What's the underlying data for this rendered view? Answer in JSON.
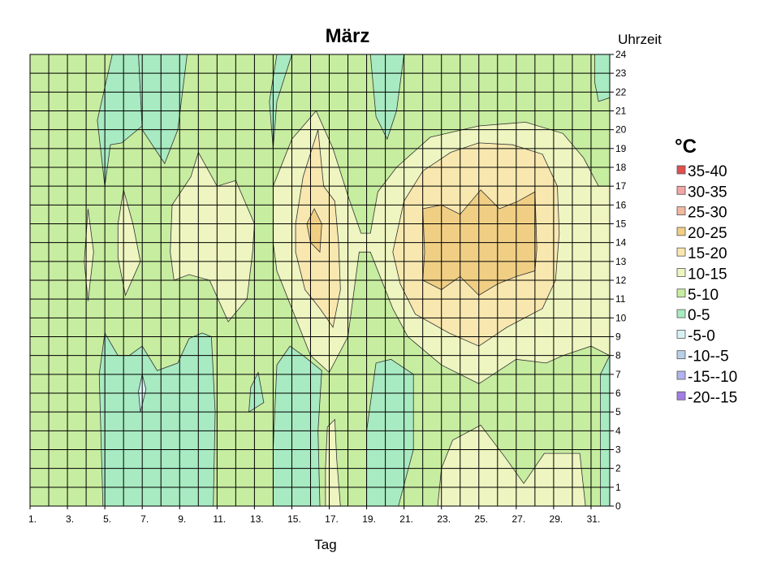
{
  "chart_data": {
    "type": "heatmap",
    "subtype": "filled-contour",
    "title": "März",
    "xlabel": "Tag",
    "ylabel": "Uhrzeit",
    "x_tick_labels": [
      "1.",
      "3.",
      "5.",
      "7.",
      "9.",
      "11.",
      "13.",
      "15.",
      "17.",
      "19.",
      "21.",
      "23.",
      "25.",
      "27.",
      "29.",
      "31."
    ],
    "xlim": [
      1,
      32
    ],
    "ylim": [
      0,
      24
    ],
    "y_ticks": [
      0,
      1,
      2,
      3,
      4,
      5,
      6,
      7,
      8,
      9,
      10,
      11,
      12,
      13,
      14,
      15,
      16,
      17,
      18,
      19,
      20,
      21,
      22,
      23,
      24
    ],
    "grid": true,
    "legend": {
      "title": "°C",
      "position": "right",
      "entries": [
        {
          "label": "35-40",
          "color": "#e05050"
        },
        {
          "label": "30-35",
          "color": "#f2a6a6"
        },
        {
          "label": "25-30",
          "color": "#f1b9a0"
        },
        {
          "label": "20-25",
          "color": "#f0cf85"
        },
        {
          "label": "15-20",
          "color": "#f8e8b0"
        },
        {
          "label": "10-15",
          "color": "#eef5c0"
        },
        {
          "label": "5-10",
          "color": "#c7eda0"
        },
        {
          "label": "0-5",
          "color": "#a8eac2"
        },
        {
          "label": "-5-0",
          "color": "#d8f1f4"
        },
        {
          "label": "-10--5",
          "color": "#b9cfe8"
        },
        {
          "label": "-15--10",
          "color": "#b2b2ee"
        },
        {
          "label": "-20--15",
          "color": "#a27ee4"
        }
      ]
    },
    "regions": [
      {
        "band": "0-5",
        "color": "#a8eac2",
        "points": [
          [
            5.4,
            24
          ],
          [
            6.8,
            24
          ],
          [
            7.0,
            20.2
          ],
          [
            5.9,
            19.3
          ],
          [
            5.3,
            19.2
          ],
          [
            5.0,
            17.0
          ],
          [
            4.6,
            20.5
          ]
        ]
      },
      {
        "band": "0-5",
        "color": "#a8eac2",
        "points": [
          [
            6.8,
            24
          ],
          [
            9.4,
            24
          ],
          [
            8.9,
            20.0
          ],
          [
            8.2,
            18.2
          ],
          [
            7.0,
            20.0
          ]
        ]
      },
      {
        "band": "0-5",
        "color": "#a8eac2",
        "points": [
          [
            14.2,
            24
          ],
          [
            15.0,
            24
          ],
          [
            14.2,
            21.5
          ],
          [
            14.0,
            19.0
          ],
          [
            13.8,
            21.5
          ]
        ]
      },
      {
        "band": "0-5",
        "color": "#a8eac2",
        "points": [
          [
            19.2,
            24
          ],
          [
            21.0,
            24
          ],
          [
            20.6,
            21.0
          ],
          [
            20.1,
            19.5
          ],
          [
            19.5,
            20.7
          ]
        ]
      },
      {
        "band": "0-5",
        "color": "#a8eac2",
        "points": [
          [
            31.2,
            24
          ],
          [
            32.0,
            24
          ],
          [
            32.0,
            21.7
          ],
          [
            31.4,
            21.5
          ],
          [
            31.2,
            22.5
          ]
        ]
      },
      {
        "band": "0-5",
        "color": "#a8eac2",
        "points": [
          [
            4.9,
            0
          ],
          [
            10.8,
            0
          ],
          [
            10.9,
            5
          ],
          [
            10.7,
            9.0
          ],
          [
            10.2,
            9.2
          ],
          [
            9.5,
            8.9
          ],
          [
            8.9,
            7.6
          ],
          [
            7.8,
            7.2
          ],
          [
            7.0,
            8.5
          ],
          [
            6.3,
            8.0
          ],
          [
            5.7,
            8.0
          ],
          [
            5.0,
            9.2
          ],
          [
            4.7,
            7.0
          ]
        ]
      },
      {
        "band": "0-5",
        "color": "#a8eac2",
        "points": [
          [
            12.7,
            5.0
          ],
          [
            13.5,
            5.5
          ],
          [
            13.2,
            7.1
          ],
          [
            12.8,
            6.3
          ]
        ]
      },
      {
        "band": "0-5",
        "color": "#a8eac2",
        "points": [
          [
            14.0,
            0
          ],
          [
            16.5,
            0
          ],
          [
            16.4,
            4
          ],
          [
            16.6,
            7.2
          ],
          [
            15.6,
            8.0
          ],
          [
            14.9,
            8.5
          ],
          [
            14.2,
            7.5
          ],
          [
            14.0,
            3
          ]
        ]
      },
      {
        "band": "0-5",
        "color": "#a8eac2",
        "points": [
          [
            19.0,
            0
          ],
          [
            20.7,
            0
          ],
          [
            21.5,
            3
          ],
          [
            21.5,
            7.0
          ],
          [
            20.3,
            7.8
          ],
          [
            19.5,
            7.6
          ],
          [
            19.0,
            4
          ]
        ]
      },
      {
        "band": "0-5",
        "color": "#a8eac2",
        "points": [
          [
            31.5,
            0
          ],
          [
            32.0,
            0
          ],
          [
            32.0,
            8.0
          ],
          [
            31.5,
            7.0
          ]
        ]
      },
      {
        "band": "-5-0",
        "color": "#d8f1f4",
        "points": [
          [
            6.9,
            5.0
          ],
          [
            7.2,
            6.2
          ],
          [
            7.0,
            7.0
          ],
          [
            6.8,
            6.1
          ]
        ]
      },
      {
        "band": "10-15",
        "color": "#eef5c0",
        "points": [
          [
            3.9,
            13
          ],
          [
            4.1,
            15.8
          ],
          [
            4.4,
            13.5
          ],
          [
            4.1,
            10.9
          ]
        ]
      },
      {
        "band": "10-15",
        "color": "#eef5c0",
        "points": [
          [
            5.7,
            15.0
          ],
          [
            6.0,
            16.8
          ],
          [
            6.5,
            15.0
          ],
          [
            6.9,
            13.0
          ],
          [
            6.1,
            11.2
          ],
          [
            5.7,
            13.2
          ]
        ]
      },
      {
        "band": "10-15",
        "color": "#eef5c0",
        "points": [
          [
            8.5,
            13.5
          ],
          [
            8.6,
            16.0
          ],
          [
            9.6,
            17.5
          ],
          [
            10.0,
            18.8
          ],
          [
            11.0,
            17.0
          ],
          [
            12.0,
            17.3
          ],
          [
            13.0,
            15.0
          ],
          [
            12.9,
            13.5
          ],
          [
            12.6,
            11.0
          ],
          [
            11.6,
            9.8
          ],
          [
            10.6,
            12.0
          ],
          [
            9.5,
            12.3
          ],
          [
            8.7,
            12.0
          ]
        ]
      },
      {
        "band": "10-15",
        "color": "#eef5c0",
        "points": [
          [
            14.0,
            14.0
          ],
          [
            14.0,
            17.0
          ],
          [
            15.0,
            19.5
          ],
          [
            16.3,
            21.0
          ],
          [
            17.2,
            19.0
          ],
          [
            18.0,
            16.5
          ],
          [
            18.7,
            14.5
          ],
          [
            19.2,
            14.5
          ],
          [
            19.6,
            16.7
          ],
          [
            20.6,
            18.0
          ],
          [
            22.4,
            19.6
          ],
          [
            25.0,
            20.2
          ],
          [
            27.5,
            20.4
          ],
          [
            29.5,
            19.8
          ],
          [
            30.6,
            18.5
          ],
          [
            31.4,
            17.0
          ],
          [
            32.0,
            17.0
          ],
          [
            32.0,
            8.0
          ],
          [
            31.0,
            8.5
          ],
          [
            29.5,
            8.0
          ],
          [
            28.6,
            7.6
          ],
          [
            27.0,
            7.8
          ],
          [
            25.0,
            6.5
          ],
          [
            23.0,
            7.5
          ],
          [
            21.2,
            9.0
          ],
          [
            20.4,
            10.5
          ],
          [
            19.2,
            13.5
          ],
          [
            18.6,
            13.5
          ],
          [
            18.0,
            9.0
          ],
          [
            17.0,
            7.1
          ],
          [
            16.0,
            8.0
          ],
          [
            15.0,
            10.5
          ],
          [
            14.2,
            12.5
          ]
        ]
      },
      {
        "band": "10-15",
        "color": "#eef5c0",
        "points": [
          [
            16.8,
            0
          ],
          [
            17.6,
            0
          ],
          [
            17.4,
            2.5
          ],
          [
            17.3,
            4.6
          ],
          [
            16.9,
            4.2
          ],
          [
            16.8,
            2.0
          ]
        ]
      },
      {
        "band": "10-15",
        "color": "#eef5c0",
        "points": [
          [
            22.8,
            0
          ],
          [
            30.7,
            0
          ],
          [
            30.4,
            2.8
          ],
          [
            28.5,
            2.8
          ],
          [
            27.4,
            1.2
          ],
          [
            26.4,
            2.6
          ],
          [
            25.1,
            4.3
          ],
          [
            23.6,
            3.5
          ],
          [
            23.0,
            2.0
          ]
        ]
      },
      {
        "band": "15-20",
        "color": "#f8e8b0",
        "points": [
          [
            15.2,
            15.0
          ],
          [
            15.6,
            17.5
          ],
          [
            16.4,
            20.0
          ],
          [
            16.7,
            17.0
          ],
          [
            17.3,
            16.2
          ],
          [
            17.5,
            14.0
          ],
          [
            17.6,
            11.5
          ],
          [
            17.2,
            9.5
          ],
          [
            16.5,
            10.5
          ],
          [
            15.7,
            11.5
          ],
          [
            15.2,
            13.5
          ]
        ]
      },
      {
        "band": "15-20",
        "color": "#f8e8b0",
        "points": [
          [
            20.4,
            13.5
          ],
          [
            21.0,
            16.2
          ],
          [
            22.0,
            17.8
          ],
          [
            23.5,
            18.8
          ],
          [
            25.0,
            19.3
          ],
          [
            26.8,
            19.2
          ],
          [
            28.4,
            18.7
          ],
          [
            29.2,
            17.0
          ],
          [
            29.3,
            14.5
          ],
          [
            29.1,
            12.0
          ],
          [
            28.4,
            10.5
          ],
          [
            26.5,
            9.5
          ],
          [
            25.0,
            8.5
          ],
          [
            23.4,
            9.2
          ],
          [
            21.6,
            10.2
          ],
          [
            20.8,
            11.8
          ]
        ]
      },
      {
        "band": "20-25",
        "color": "#f0cf85",
        "points": [
          [
            15.8,
            15.0
          ],
          [
            16.2,
            15.8
          ],
          [
            16.6,
            15.0
          ],
          [
            16.5,
            13.5
          ],
          [
            16.0,
            14.0
          ]
        ]
      },
      {
        "band": "20-25",
        "color": "#f0cf85",
        "points": [
          [
            22.0,
            15.8
          ],
          [
            23.0,
            16.0
          ],
          [
            24.0,
            15.5
          ],
          [
            25.1,
            16.8
          ],
          [
            26.1,
            15.8
          ],
          [
            27.1,
            16.2
          ],
          [
            28.0,
            16.7
          ],
          [
            28.1,
            13.7
          ],
          [
            28.0,
            12.5
          ],
          [
            27.0,
            12.2
          ],
          [
            26.0,
            11.8
          ],
          [
            25.0,
            11.2
          ],
          [
            24.0,
            12.2
          ],
          [
            23.0,
            11.5
          ],
          [
            22.0,
            12.0
          ],
          [
            22.1,
            13.5
          ]
        ]
      }
    ]
  }
}
